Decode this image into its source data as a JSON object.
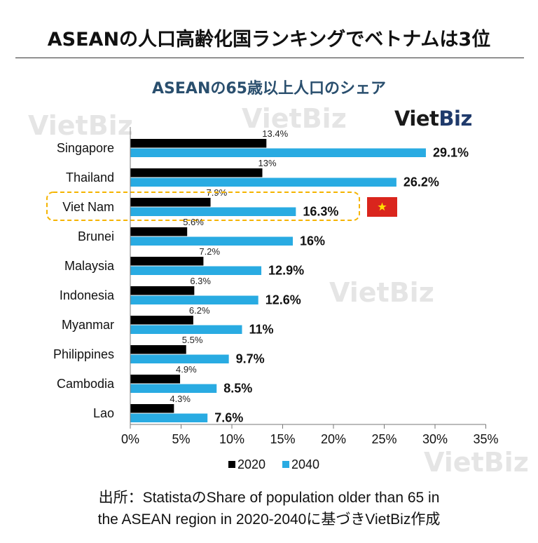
{
  "title": "ASEANの人口高齢化国ランキングでベトナムは3位",
  "subtitle": "ASEANの65歳以上人口のシェア",
  "logo": {
    "part1": "Viet",
    "part2": "Biz",
    "color1": "#1a1a1a",
    "color2": "#1f3a6b"
  },
  "watermark_text": "VietBiz",
  "source_line1": "出所：StatistaのShare of population older than 65 in",
  "source_line2": "the ASEAN region in 2020-2040に基づきVietBiz作成",
  "colors": {
    "series_2020": "#000000",
    "series_2040": "#29abe2",
    "highlight_border": "#f5b400",
    "subtitle": "#2a4f6e",
    "flag_red": "#da251d",
    "flag_star": "#ffde00"
  },
  "chart_data": {
    "type": "bar",
    "orientation": "horizontal",
    "categories": [
      "Singapore",
      "Thailand",
      "Viet Nam",
      "Brunei",
      "Malaysia",
      "Indonesia",
      "Myanmar",
      "Philippines",
      "Cambodia",
      "Lao"
    ],
    "series": [
      {
        "name": "2020",
        "values": [
          13.4,
          13,
          7.9,
          5.6,
          7.2,
          6.3,
          6.2,
          5.5,
          4.9,
          4.3
        ],
        "labels": [
          "13.4%",
          "13%",
          "7.9%",
          "5.6%",
          "7.2%",
          "6.3%",
          "6.2%",
          "5.5%",
          "4.9%",
          "4.3%"
        ]
      },
      {
        "name": "2040",
        "values": [
          29.1,
          26.2,
          16.3,
          16,
          12.9,
          12.6,
          11,
          9.7,
          8.5,
          7.6
        ],
        "labels": [
          "29.1%",
          "26.2%",
          "16.3%",
          "16%",
          "12.9%",
          "12.6%",
          "11%",
          "9.7%",
          "8.5%",
          "7.6%"
        ]
      }
    ],
    "xlim": [
      0,
      35
    ],
    "xticks": [
      0,
      5,
      10,
      15,
      20,
      25,
      30,
      35
    ],
    "xtick_labels": [
      "0%",
      "5%",
      "10%",
      "15%",
      "20%",
      "25%",
      "30%",
      "35%"
    ],
    "highlight_category": "Viet Nam",
    "legend": "bottom",
    "grid": false
  }
}
